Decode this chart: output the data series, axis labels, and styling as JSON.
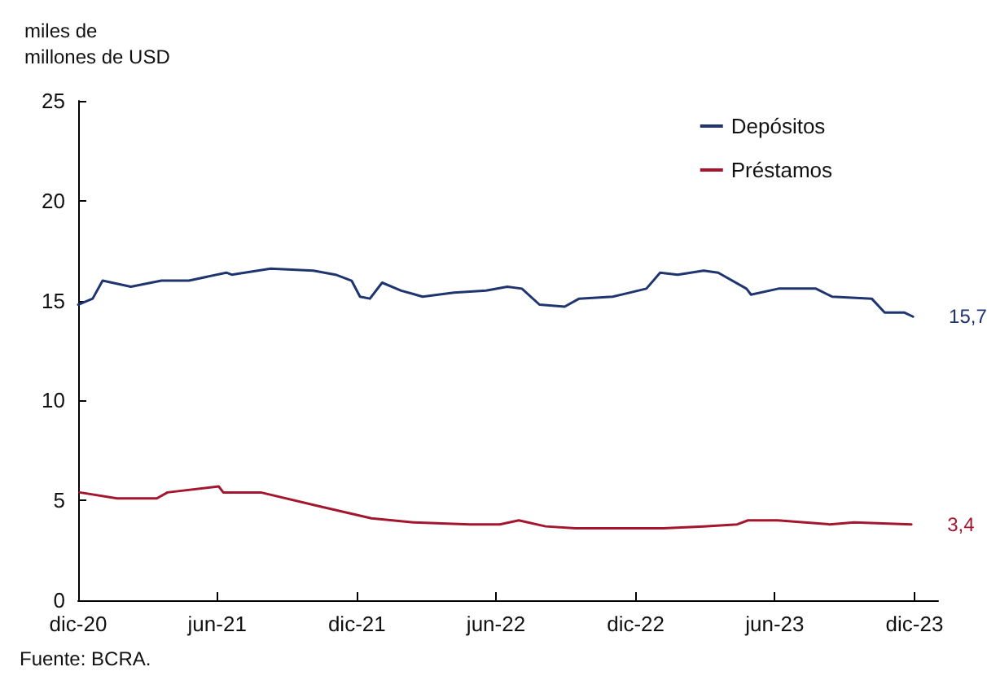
{
  "chart_data": {
    "type": "line",
    "ylabel": "miles de\nmillones de USD",
    "xlim": [
      "2020-12-01",
      "2024-01-01"
    ],
    "xticks": [
      {
        "value": "2020-12-01",
        "label": "dic-20"
      },
      {
        "value": "2021-06-01",
        "label": "jun-21"
      },
      {
        "value": "2021-12-01",
        "label": "dic-21"
      },
      {
        "value": "2022-06-01",
        "label": "jun-22"
      },
      {
        "value": "2022-12-01",
        "label": "dic-22"
      },
      {
        "value": "2023-06-01",
        "label": "jun-23"
      },
      {
        "value": "2023-12-01",
        "label": "dic-23"
      }
    ],
    "ylim": [
      0,
      25
    ],
    "yticks": [
      0,
      5,
      10,
      15,
      20,
      25
    ],
    "grid": false,
    "legend": "top right",
    "marker": "none",
    "line_style": "solid",
    "series": [
      {
        "name": "Depósitos",
        "color": "#1f3570",
        "x": [
          "2020-12-01",
          "2020-12-20",
          "2021-01-02",
          "2021-02-08",
          "2021-03-20",
          "2021-04-25",
          "2021-06-13",
          "2021-06-20",
          "2021-08-10",
          "2021-10-05",
          "2021-11-03",
          "2021-11-24",
          "2021-12-05",
          "2021-12-18",
          "2022-01-03",
          "2022-01-28",
          "2022-02-25",
          "2022-04-07",
          "2022-05-19",
          "2022-06-16",
          "2022-07-05",
          "2022-07-28",
          "2022-08-30",
          "2022-09-18",
          "2022-11-01",
          "2022-12-15",
          "2023-01-02",
          "2023-01-25",
          "2023-02-28",
          "2023-03-19",
          "2023-04-25",
          "2023-05-01",
          "2023-06-06",
          "2023-07-25",
          "2023-08-15",
          "2023-10-06",
          "2023-10-23",
          "2023-11-18",
          "2023-11-29"
        ],
        "values": [
          14.8,
          15.1,
          16.0,
          15.7,
          16.0,
          16.0,
          16.4,
          16.3,
          16.6,
          16.5,
          16.3,
          16.0,
          15.2,
          15.1,
          15.9,
          15.5,
          15.2,
          15.4,
          15.5,
          15.7,
          15.6,
          14.8,
          14.7,
          15.1,
          15.2,
          15.6,
          16.4,
          16.3,
          16.5,
          16.4,
          15.6,
          15.3,
          15.6,
          15.6,
          15.2,
          15.1,
          14.4,
          14.4,
          14.2
        ]
      },
      {
        "name": "Préstamos",
        "color": "#a3162e",
        "x": [
          "2020-12-03",
          "2021-01-21",
          "2021-03-14",
          "2021-03-28",
          "2021-06-03",
          "2021-06-09",
          "2021-07-28",
          "2021-10-13",
          "2021-12-20",
          "2022-02-13",
          "2022-04-28",
          "2022-06-06",
          "2022-07-01",
          "2022-08-05",
          "2022-09-13",
          "2023-01-06",
          "2023-02-28",
          "2023-04-13",
          "2023-04-27",
          "2023-06-05",
          "2023-08-12",
          "2023-09-13",
          "2023-11-27"
        ],
        "values": [
          5.4,
          5.1,
          5.1,
          5.4,
          5.7,
          5.4,
          5.4,
          4.7,
          4.1,
          3.9,
          3.8,
          3.8,
          4.0,
          3.7,
          3.6,
          3.6,
          3.7,
          3.8,
          4.0,
          4.0,
          3.8,
          3.9,
          3.8
        ]
      }
    ],
    "annotations": [
      "15,7",
      "3,4",
      "Fuente: BCRA."
    ]
  }
}
